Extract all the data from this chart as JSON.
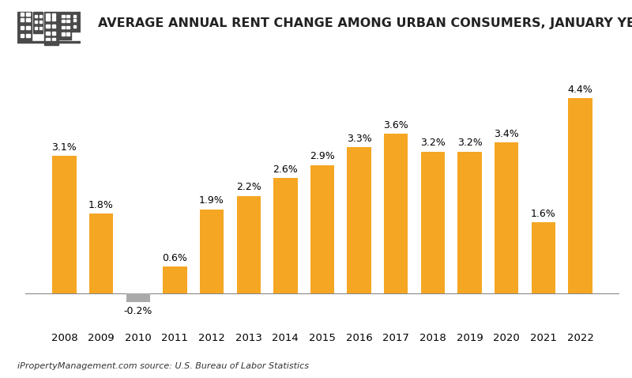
{
  "years": [
    2008,
    2009,
    2010,
    2011,
    2012,
    2013,
    2014,
    2015,
    2016,
    2017,
    2018,
    2019,
    2020,
    2021,
    2022
  ],
  "values": [
    3.1,
    1.8,
    -0.2,
    0.6,
    1.9,
    2.2,
    2.6,
    2.9,
    3.3,
    3.6,
    3.2,
    3.2,
    3.4,
    1.6,
    4.4
  ],
  "bar_color_positive": "#F5A623",
  "bar_color_negative": "#AAAAAA",
  "title": "AVERAGE ANNUAL RENT CHANGE AMONG URBAN CONSUMERS, JANUARY YEAR-OVER-YEAR",
  "title_fontsize": 11.5,
  "ylim": [
    -0.8,
    5.0
  ],
  "background_color": "#FFFFFF",
  "label_fontsize": 9,
  "tick_fontsize": 9.5,
  "source_text": "iPropertyManagement.com source: U.S. Bureau of Labor Statistics",
  "source_fontsize": 8
}
